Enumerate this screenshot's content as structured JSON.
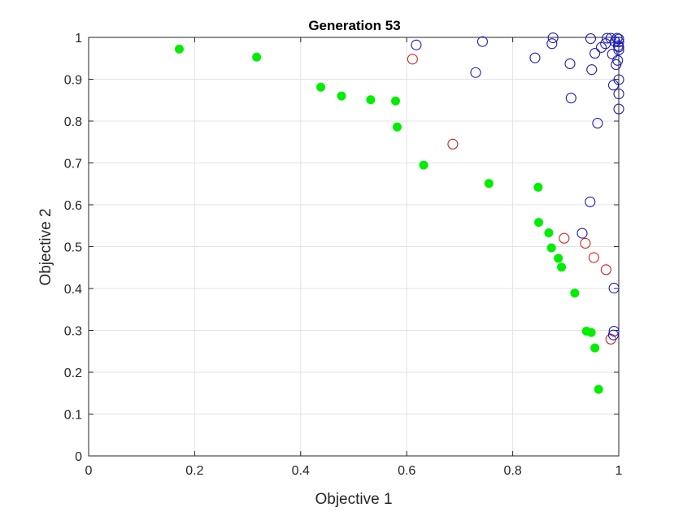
{
  "chart_data": {
    "type": "scatter",
    "title": "Generation 53",
    "xlabel": "Objective 1",
    "ylabel": "Objective 2",
    "xlim": [
      0,
      1
    ],
    "ylim": [
      0,
      1
    ],
    "xticks": [
      "0",
      "0.2",
      "0.4",
      "0.6",
      "0.8",
      "1"
    ],
    "yticks": [
      "0",
      "0.1",
      "0.2",
      "0.3",
      "0.4",
      "0.5",
      "0.6",
      "0.7",
      "0.8",
      "0.9",
      "1"
    ],
    "grid": true,
    "legend": "none",
    "series": [
      {
        "marker": "filled-circle",
        "color": "#00ee00",
        "points": [
          [
            0.171,
            0.972
          ],
          [
            0.317,
            0.953
          ],
          [
            0.438,
            0.881
          ],
          [
            0.477,
            0.86
          ],
          [
            0.532,
            0.851
          ],
          [
            0.579,
            0.848
          ],
          [
            0.582,
            0.786
          ],
          [
            0.632,
            0.695
          ],
          [
            0.755,
            0.651
          ],
          [
            0.848,
            0.642
          ],
          [
            0.849,
            0.558
          ],
          [
            0.868,
            0.533
          ],
          [
            0.873,
            0.497
          ],
          [
            0.886,
            0.472
          ],
          [
            0.892,
            0.451
          ],
          [
            0.917,
            0.389
          ],
          [
            0.939,
            0.298
          ],
          [
            0.948,
            0.295
          ],
          [
            0.955,
            0.258
          ],
          [
            0.962,
            0.159
          ]
        ]
      },
      {
        "marker": "open-circle",
        "color": "#cc2222",
        "points": [
          [
            0.611,
            0.948
          ],
          [
            0.687,
            0.745
          ],
          [
            0.897,
            0.52
          ],
          [
            0.937,
            0.508
          ],
          [
            0.953,
            0.474
          ],
          [
            0.976,
            0.445
          ],
          [
            0.985,
            0.279
          ]
        ]
      },
      {
        "marker": "open-circle",
        "color": "#1a1ab8",
        "points": [
          [
            0.618,
            0.982
          ],
          [
            0.743,
            0.99
          ],
          [
            0.73,
            0.916
          ],
          [
            0.842,
            0.951
          ],
          [
            0.874,
            0.985
          ],
          [
            0.876,
            0.999
          ],
          [
            0.908,
            0.937
          ],
          [
            0.91,
            0.855
          ],
          [
            0.947,
            0.997
          ],
          [
            0.949,
            0.923
          ],
          [
            0.955,
            0.962
          ],
          [
            0.96,
            0.795
          ],
          [
            0.967,
            0.976
          ],
          [
            0.975,
            0.985
          ],
          [
            0.978,
            0.998
          ],
          [
            0.985,
            0.998
          ],
          [
            0.988,
            0.96
          ],
          [
            0.99,
            0.886
          ],
          [
            0.993,
            0.99
          ],
          [
            0.995,
            0.935
          ],
          [
            0.997,
            0.998
          ],
          [
            0.998,
            0.945
          ],
          [
            0.999,
            0.98
          ],
          [
            1.0,
            0.97
          ],
          [
            1.0,
            0.996
          ],
          [
            1.0,
            0.989
          ],
          [
            1.0,
            0.977
          ],
          [
            1.0,
            0.899
          ],
          [
            1.0,
            0.865
          ],
          [
            1.0,
            0.829
          ],
          [
            0.946,
            0.607
          ],
          [
            0.931,
            0.532
          ],
          [
            0.991,
            0.401
          ],
          [
            0.991,
            0.298
          ],
          [
            0.99,
            0.289
          ]
        ]
      }
    ]
  }
}
